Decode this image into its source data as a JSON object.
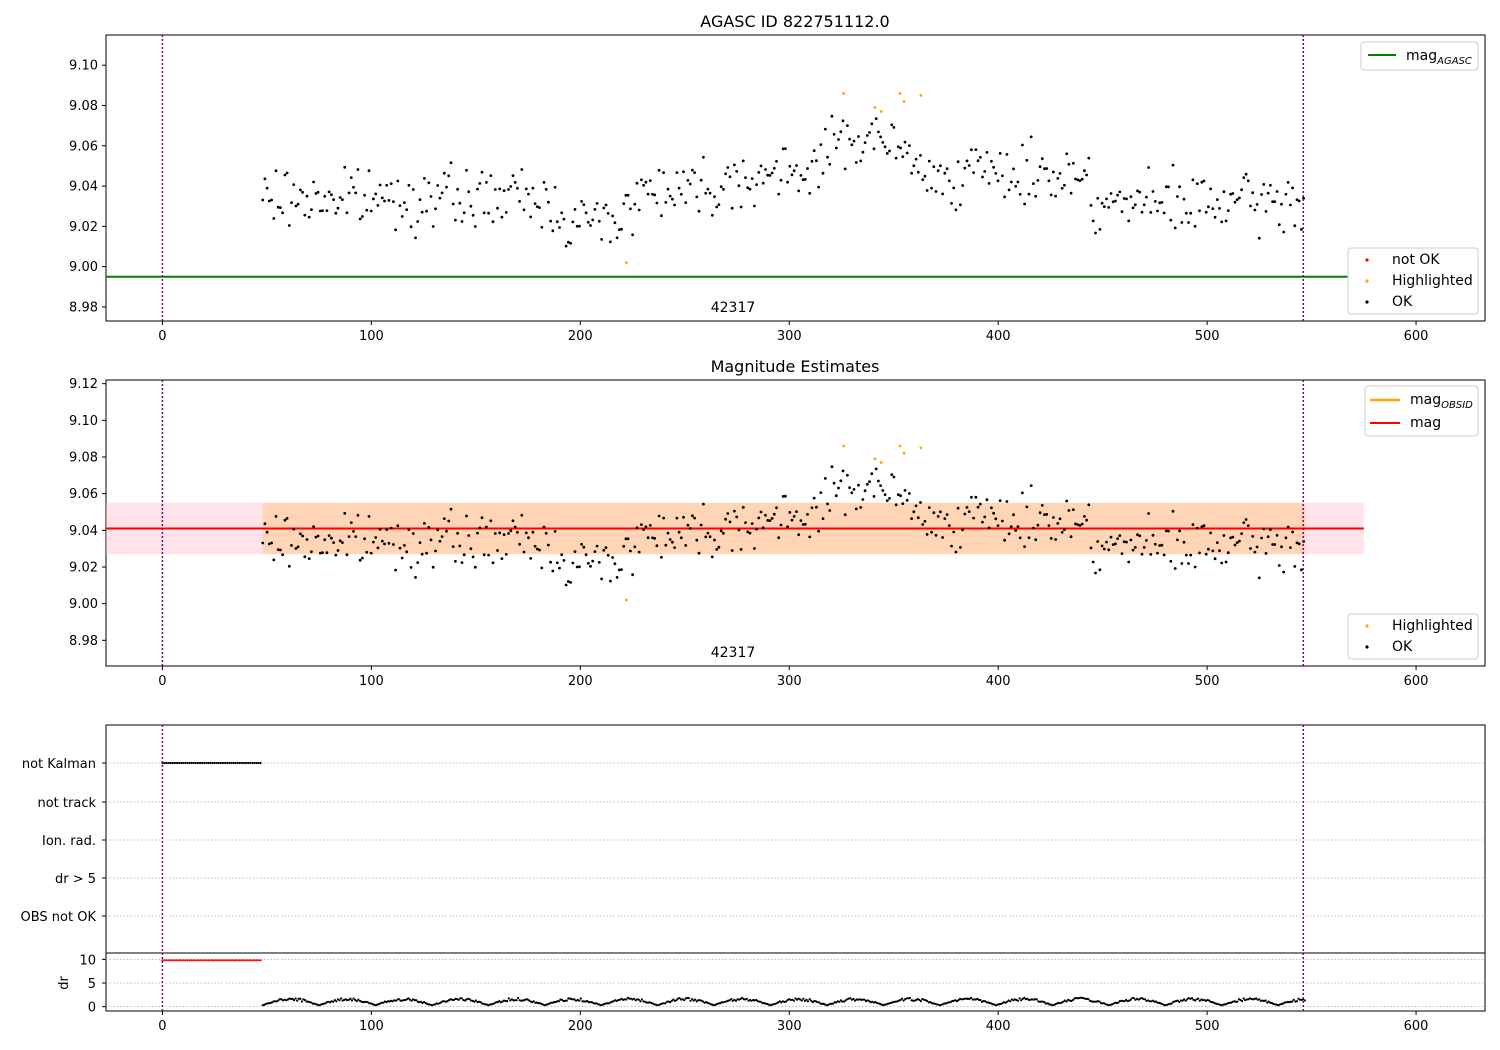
{
  "chart_data": [
    {
      "type": "scatter",
      "title": "AGASC ID 822751112.0",
      "xlim": [
        -27,
        633
      ],
      "ylim": [
        8.973,
        9.115
      ],
      "xticks": [
        "0",
        "100",
        "200",
        "300",
        "400",
        "500",
        "600"
      ],
      "yticks": [
        "8.98",
        "9.00",
        "9.02",
        "9.04",
        "9.06",
        "9.08",
        "9.10"
      ],
      "vlines_x": [
        0,
        546
      ],
      "hline": {
        "name": "mag_AGASC",
        "y": 8.995,
        "x_start": -27,
        "x_end": 575,
        "color": "#008000"
      },
      "annotation": {
        "text": "42317",
        "x": 273,
        "y": 8.9765
      },
      "legend_lines": [
        {
          "label": "mag",
          "subscript": "AGASC",
          "color": "#008000"
        }
      ],
      "legend_markers": [
        {
          "label": "not OK",
          "color": "#ff0000"
        },
        {
          "label": "Highlighted",
          "color": "#ffa500"
        },
        {
          "label": "OK",
          "color": "#000000"
        }
      ],
      "series": [
        {
          "name": "OK",
          "color": "#000000",
          "x_range": [
            48,
            547
          ],
          "count": 470
        },
        {
          "name": "Highlighted",
          "color": "#ffa500",
          "points": [
            [
              222,
              9.002
            ],
            [
              326,
              9.086
            ],
            [
              341,
              9.079
            ],
            [
              344,
              9.077
            ],
            [
              353,
              9.086
            ],
            [
              355,
              9.082
            ],
            [
              363,
              9.085
            ]
          ]
        }
      ]
    },
    {
      "type": "scatter",
      "title": "Magnitude Estimates",
      "xlim": [
        -27,
        633
      ],
      "ylim": [
        8.966,
        9.122
      ],
      "xticks": [
        "0",
        "100",
        "200",
        "300",
        "400",
        "500",
        "600"
      ],
      "yticks": [
        "8.98",
        "9.00",
        "9.02",
        "9.04",
        "9.06",
        "9.08",
        "9.10",
        "9.12"
      ],
      "vlines_x": [
        0,
        546
      ],
      "band_pink": {
        "y0": 9.027,
        "y1": 9.055,
        "x0": -27,
        "x1": 575,
        "color": "#ffc0cb"
      },
      "band_orange": {
        "y0": 9.027,
        "y1": 9.055,
        "x0": 48,
        "x1": 547,
        "color": "#ffa500"
      },
      "hline": {
        "name": "mag",
        "y": 9.041,
        "x_start": -27,
        "x_end": 575,
        "color": "#ff0000"
      },
      "annotation": {
        "text": "42317",
        "x": 273,
        "y": 8.9695
      },
      "legend_lines": [
        {
          "label": "mag",
          "subscript": "OBSID",
          "color": "#ffa500"
        },
        {
          "label": "mag",
          "subscript": "",
          "color": "#ff0000"
        }
      ],
      "legend_markers": [
        {
          "label": "Highlighted",
          "color": "#ffa500"
        },
        {
          "label": "OK",
          "color": "#000000"
        }
      ]
    },
    {
      "type": "scatter",
      "title": "",
      "xlim": [
        -27,
        633
      ],
      "xticks": [
        "0",
        "100",
        "200",
        "300",
        "400",
        "500",
        "600"
      ],
      "flag_rows": [
        "not Kalman",
        "not track",
        "Ion. rad.",
        "dr > 5",
        "OBS not OK"
      ],
      "not_kalman_x_range": [
        0,
        47
      ],
      "dr": {
        "ylabel": "dr",
        "ylim": [
          -0.5,
          10.5
        ],
        "yticks": [
          "0",
          "5",
          "10"
        ],
        "flagged": {
          "x_range": [
            0,
            47
          ],
          "value": 9.8,
          "color": "#ff0000"
        },
        "ok": {
          "x_range": [
            48,
            547
          ],
          "color": "#000000"
        }
      },
      "vlines_x": [
        0,
        546
      ]
    }
  ]
}
